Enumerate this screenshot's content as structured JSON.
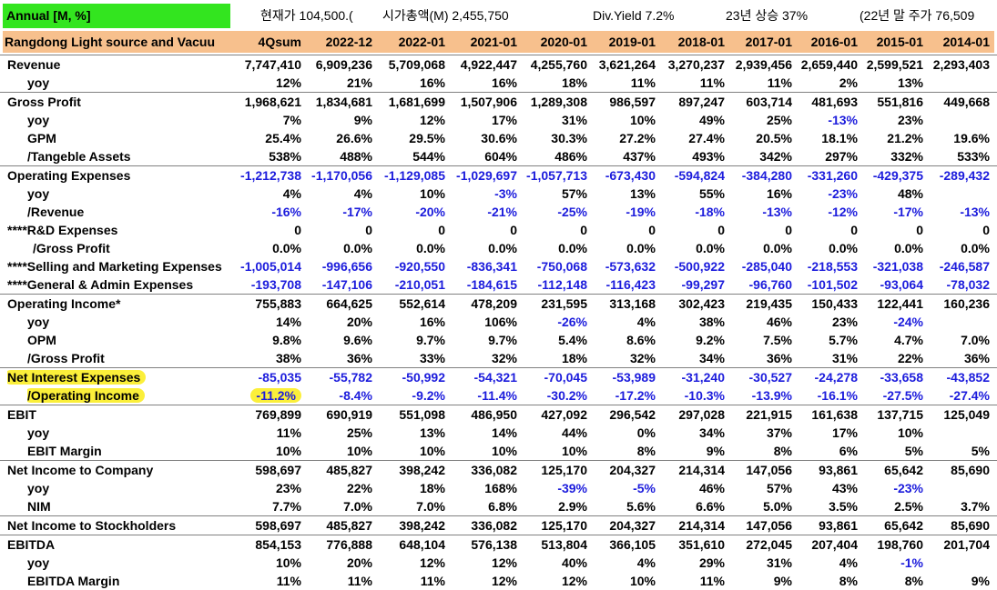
{
  "top": {
    "badge": "Annual [M, %]",
    "price": "현재가  104,500.(",
    "mcap": "시가총액(M) 2,455,750",
    "yield": "Div.Yield  7.2%",
    "rise": "23년 상승 37%",
    "prevclose": "(22년 말 주가 76,509"
  },
  "header": {
    "company": "Rangdong Light source and Vacuu",
    "columns": [
      "4Qsum",
      "2022-12",
      "2022-01",
      "2021-01",
      "2020-01",
      "2019-01",
      "2018-01",
      "2017-01",
      "2016-01",
      "2015-01",
      "2014-01"
    ]
  },
  "colors": {
    "header_bg": "#f7c08d",
    "badge_bg": "#33e51f",
    "negative": "#1c1cdc",
    "highlight": "#fbef3a"
  },
  "rows": [
    {
      "label": "Revenue",
      "indent": 0,
      "group": true,
      "values": [
        "7,747,410",
        "6,909,236",
        "5,709,068",
        "4,922,447",
        "4,255,760",
        "3,621,264",
        "3,270,237",
        "2,939,456",
        "2,659,440",
        "2,599,521",
        "2,293,403"
      ]
    },
    {
      "label": "yoy",
      "indent": 1,
      "values": [
        "12%",
        "21%",
        "16%",
        "16%",
        "18%",
        "11%",
        "11%",
        "11%",
        "2%",
        "13%",
        ""
      ]
    },
    {
      "label": "Gross Profit",
      "indent": 0,
      "group": true,
      "values": [
        "1,968,621",
        "1,834,681",
        "1,681,699",
        "1,507,906",
        "1,289,308",
        "986,597",
        "897,247",
        "603,714",
        "481,693",
        "551,816",
        "449,668"
      ]
    },
    {
      "label": "yoy",
      "indent": 1,
      "values": [
        "7%",
        "9%",
        "12%",
        "17%",
        "31%",
        "10%",
        "49%",
        "25%",
        "-13%",
        "23%",
        ""
      ]
    },
    {
      "label": "GPM",
      "indent": 1,
      "values": [
        "25.4%",
        "26.6%",
        "29.5%",
        "30.6%",
        "30.3%",
        "27.2%",
        "27.4%",
        "20.5%",
        "18.1%",
        "21.2%",
        "19.6%"
      ]
    },
    {
      "label": "/Tangeble Assets",
      "indent": 1,
      "values": [
        "538%",
        "488%",
        "544%",
        "604%",
        "486%",
        "437%",
        "493%",
        "342%",
        "297%",
        "332%",
        "533%"
      ]
    },
    {
      "label": "Operating Expenses",
      "indent": 0,
      "group": true,
      "values": [
        "-1,212,738",
        "-1,170,056",
        "-1,129,085",
        "-1,029,697",
        "-1,057,713",
        "-673,430",
        "-594,824",
        "-384,280",
        "-331,260",
        "-429,375",
        "-289,432"
      ]
    },
    {
      "label": "yoy",
      "indent": 1,
      "values": [
        "4%",
        "4%",
        "10%",
        "-3%",
        "57%",
        "13%",
        "55%",
        "16%",
        "-23%",
        "48%",
        ""
      ]
    },
    {
      "label": "/Revenue",
      "indent": 1,
      "values": [
        "-16%",
        "-17%",
        "-20%",
        "-21%",
        "-25%",
        "-19%",
        "-18%",
        "-13%",
        "-12%",
        "-17%",
        "-13%"
      ]
    },
    {
      "label": "****R&D Expenses",
      "indent": 0,
      "values": [
        "0",
        "0",
        "0",
        "0",
        "0",
        "0",
        "0",
        "0",
        "0",
        "0",
        "0"
      ]
    },
    {
      "label": "/Gross Profit",
      "indent": 2,
      "values": [
        "0.0%",
        "0.0%",
        "0.0%",
        "0.0%",
        "0.0%",
        "0.0%",
        "0.0%",
        "0.0%",
        "0.0%",
        "0.0%",
        "0.0%"
      ]
    },
    {
      "label": "****Selling and Marketing Expenses",
      "indent": 0,
      "values": [
        "-1,005,014",
        "-996,656",
        "-920,550",
        "-836,341",
        "-750,068",
        "-573,632",
        "-500,922",
        "-285,040",
        "-218,553",
        "-321,038",
        "-246,587"
      ]
    },
    {
      "label": "****General & Admin Expenses",
      "indent": 0,
      "values": [
        "-193,708",
        "-147,106",
        "-210,051",
        "-184,615",
        "-112,148",
        "-116,423",
        "-99,297",
        "-96,760",
        "-101,502",
        "-93,064",
        "-78,032"
      ]
    },
    {
      "label": "Operating Income*",
      "indent": 0,
      "group": true,
      "values": [
        "755,883",
        "664,625",
        "552,614",
        "478,209",
        "231,595",
        "313,168",
        "302,423",
        "219,435",
        "150,433",
        "122,441",
        "160,236"
      ]
    },
    {
      "label": "yoy",
      "indent": 1,
      "values": [
        "14%",
        "20%",
        "16%",
        "106%",
        "-26%",
        "4%",
        "38%",
        "46%",
        "23%",
        "-24%",
        ""
      ]
    },
    {
      "label": "OPM",
      "indent": 1,
      "values": [
        "9.8%",
        "9.6%",
        "9.7%",
        "9.7%",
        "5.4%",
        "8.6%",
        "9.2%",
        "7.5%",
        "5.7%",
        "4.7%",
        "7.0%"
      ]
    },
    {
      "label": "/Gross Profit",
      "indent": 1,
      "values": [
        "38%",
        "36%",
        "33%",
        "32%",
        "18%",
        "32%",
        "34%",
        "36%",
        "31%",
        "22%",
        "36%"
      ]
    },
    {
      "label": "Net Interest Expenses",
      "indent": 0,
      "group": true,
      "highlight": true,
      "values": [
        "-85,035",
        "-55,782",
        "-50,992",
        "-54,321",
        "-70,045",
        "-53,989",
        "-31,240",
        "-30,527",
        "-24,278",
        "-33,658",
        "-43,852"
      ]
    },
    {
      "label": "/Operating Income",
      "indent": 1,
      "highlight": true,
      "highlightFirst": true,
      "values": [
        "-11.2%",
        "-8.4%",
        "-9.2%",
        "-11.4%",
        "-30.2%",
        "-17.2%",
        "-10.3%",
        "-13.9%",
        "-16.1%",
        "-27.5%",
        "-27.4%"
      ]
    },
    {
      "label": "EBIT",
      "indent": 0,
      "group": true,
      "values": [
        "769,899",
        "690,919",
        "551,098",
        "486,950",
        "427,092",
        "296,542",
        "297,028",
        "221,915",
        "161,638",
        "137,715",
        "125,049"
      ]
    },
    {
      "label": "yoy",
      "indent": 1,
      "values": [
        "11%",
        "25%",
        "13%",
        "14%",
        "44%",
        "0%",
        "34%",
        "37%",
        "17%",
        "10%",
        ""
      ]
    },
    {
      "label": "EBIT Margin",
      "indent": 1,
      "values": [
        "10%",
        "10%",
        "10%",
        "10%",
        "10%",
        "8%",
        "9%",
        "8%",
        "6%",
        "5%",
        "5%"
      ]
    },
    {
      "label": "Net Income to Company",
      "indent": 0,
      "group": true,
      "values": [
        "598,697",
        "485,827",
        "398,242",
        "336,082",
        "125,170",
        "204,327",
        "214,314",
        "147,056",
        "93,861",
        "65,642",
        "85,690"
      ]
    },
    {
      "label": "yoy",
      "indent": 1,
      "values": [
        "23%",
        "22%",
        "18%",
        "168%",
        "-39%",
        "-5%",
        "46%",
        "57%",
        "43%",
        "-23%",
        ""
      ]
    },
    {
      "label": "NIM",
      "indent": 1,
      "values": [
        "7.7%",
        "7.0%",
        "7.0%",
        "6.8%",
        "2.9%",
        "5.6%",
        "6.6%",
        "5.0%",
        "3.5%",
        "2.5%",
        "3.7%"
      ]
    },
    {
      "label": "Net Income to Stockholders",
      "indent": 0,
      "group": true,
      "values": [
        "598,697",
        "485,827",
        "398,242",
        "336,082",
        "125,170",
        "204,327",
        "214,314",
        "147,056",
        "93,861",
        "65,642",
        "85,690"
      ]
    },
    {
      "label": "EBITDA",
      "indent": 0,
      "group": true,
      "values": [
        "854,153",
        "776,888",
        "648,104",
        "576,138",
        "513,804",
        "366,105",
        "351,610",
        "272,045",
        "207,404",
        "198,760",
        "201,704"
      ]
    },
    {
      "label": "yoy",
      "indent": 1,
      "values": [
        "10%",
        "20%",
        "12%",
        "12%",
        "40%",
        "4%",
        "29%",
        "31%",
        "4%",
        "-1%",
        ""
      ]
    },
    {
      "label": "EBITDA Margin",
      "indent": 1,
      "values": [
        "11%",
        "11%",
        "11%",
        "12%",
        "12%",
        "10%",
        "11%",
        "9%",
        "8%",
        "8%",
        "9%"
      ]
    }
  ]
}
